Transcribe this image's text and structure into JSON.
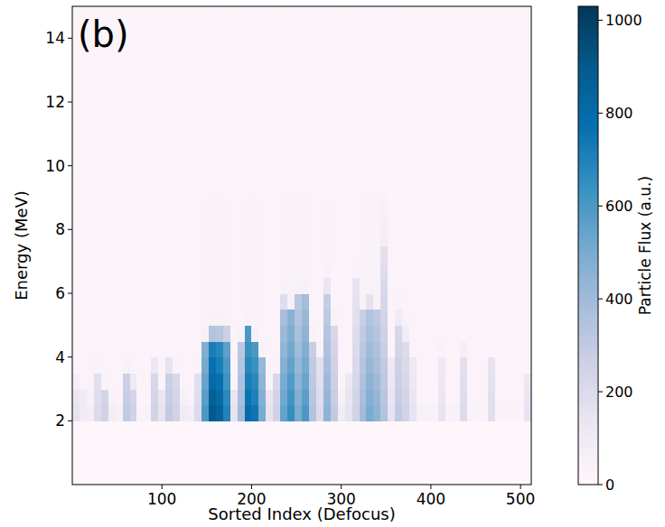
{
  "chart_data": {
    "type": "heatmap",
    "annotations": [
      "(b)"
    ],
    "x_label": "Sorted Index (Defocus)",
    "y_label": "Energy (MeV)",
    "x_bins": [
      0,
      8,
      16,
      24,
      32,
      40,
      48,
      56,
      64,
      72,
      80,
      88,
      96,
      104,
      112,
      120,
      128,
      136,
      144,
      152,
      160,
      168,
      176,
      184,
      192,
      200,
      208,
      216,
      224,
      232,
      240,
      248,
      256,
      264,
      272,
      280,
      288,
      296,
      304,
      312,
      320,
      328,
      336,
      344,
      352,
      360,
      368,
      376,
      384,
      392,
      400,
      408,
      416,
      424,
      432,
      440,
      448,
      456,
      464,
      472,
      480,
      488,
      496,
      504,
      512
    ],
    "y_bins": [
      0,
      2,
      2.5,
      3,
      3.5,
      4,
      4.5,
      5,
      5.5,
      6,
      6.5,
      7,
      7.5,
      8,
      8.5,
      9,
      15
    ],
    "values": [
      [
        10,
        150,
        140,
        70,
        30,
        30,
        30,
        30,
        30,
        30,
        30,
        30,
        30,
        30,
        30,
        25
      ],
      [
        10,
        100,
        95,
        30,
        30,
        30,
        30,
        30,
        30,
        30,
        30,
        30,
        30,
        30,
        30,
        25
      ],
      [
        10,
        80,
        50,
        30,
        30,
        30,
        30,
        30,
        30,
        30,
        30,
        30,
        30,
        30,
        30,
        25
      ],
      [
        10,
        200,
        190,
        180,
        40,
        30,
        30,
        30,
        30,
        30,
        30,
        30,
        30,
        30,
        30,
        25
      ],
      [
        10,
        250,
        240,
        40,
        30,
        30,
        30,
        30,
        30,
        30,
        30,
        30,
        30,
        30,
        30,
        25
      ],
      [
        10,
        80,
        40,
        30,
        30,
        30,
        30,
        30,
        30,
        30,
        30,
        30,
        30,
        30,
        30,
        25
      ],
      [
        10,
        60,
        30,
        30,
        30,
        30,
        30,
        30,
        30,
        30,
        30,
        30,
        30,
        30,
        30,
        25
      ],
      [
        10,
        300,
        285,
        270,
        50,
        30,
        30,
        30,
        30,
        30,
        30,
        30,
        30,
        30,
        30,
        25
      ],
      [
        10,
        250,
        240,
        110,
        30,
        30,
        30,
        30,
        30,
        30,
        30,
        30,
        30,
        30,
        30,
        25
      ],
      [
        10,
        40,
        30,
        30,
        30,
        30,
        30,
        30,
        30,
        30,
        30,
        30,
        30,
        30,
        30,
        25
      ],
      [
        10,
        50,
        30,
        30,
        30,
        30,
        30,
        30,
        30,
        30,
        30,
        30,
        30,
        30,
        30,
        25
      ],
      [
        10,
        250,
        240,
        225,
        130,
        30,
        30,
        30,
        30,
        30,
        30,
        30,
        30,
        30,
        30,
        25
      ],
      [
        10,
        150,
        140,
        35,
        30,
        30,
        30,
        30,
        30,
        30,
        30,
        30,
        30,
        30,
        30,
        25
      ],
      [
        10,
        300,
        285,
        270,
        150,
        35,
        30,
        30,
        30,
        30,
        30,
        30,
        30,
        30,
        30,
        25
      ],
      [
        10,
        250,
        240,
        225,
        40,
        30,
        30,
        30,
        30,
        30,
        30,
        30,
        30,
        30,
        30,
        25
      ],
      [
        10,
        100,
        60,
        30,
        30,
        30,
        30,
        30,
        30,
        30,
        30,
        30,
        30,
        30,
        30,
        25
      ],
      [
        10,
        80,
        40,
        30,
        30,
        30,
        30,
        30,
        30,
        30,
        30,
        30,
        30,
        30,
        30,
        25
      ],
      [
        10,
        200,
        190,
        180,
        40,
        30,
        30,
        30,
        30,
        30,
        30,
        30,
        30,
        30,
        30,
        25
      ],
      [
        10,
        600,
        570,
        540,
        510,
        480,
        60,
        40,
        40,
        40,
        40,
        40,
        40,
        40,
        40,
        30
      ],
      [
        10,
        900,
        860,
        810,
        770,
        720,
        350,
        50,
        40,
        40,
        40,
        40,
        40,
        40,
        40,
        30
      ],
      [
        10,
        850,
        810,
        770,
        720,
        680,
        330,
        50,
        40,
        40,
        40,
        40,
        40,
        40,
        40,
        30
      ],
      [
        10,
        700,
        670,
        630,
        600,
        560,
        270,
        45,
        40,
        40,
        40,
        40,
        40,
        40,
        40,
        30
      ],
      [
        10,
        150,
        140,
        35,
        30,
        30,
        30,
        30,
        30,
        30,
        30,
        30,
        30,
        30,
        30,
        25
      ],
      [
        10,
        400,
        380,
        360,
        340,
        320,
        45,
        35,
        35,
        35,
        35,
        35,
        35,
        35,
        35,
        30
      ],
      [
        10,
        800,
        760,
        720,
        680,
        640,
        600,
        50,
        40,
        40,
        40,
        40,
        40,
        40,
        40,
        30
      ],
      [
        10,
        750,
        710,
        680,
        640,
        600,
        60,
        40,
        40,
        40,
        40,
        40,
        40,
        40,
        40,
        30
      ],
      [
        10,
        500,
        475,
        450,
        425,
        50,
        35,
        35,
        35,
        35,
        35,
        35,
        35,
        35,
        35,
        30
      ],
      [
        10,
        150,
        140,
        35,
        30,
        30,
        30,
        30,
        30,
        30,
        30,
        30,
        30,
        30,
        30,
        25
      ],
      [
        10,
        250,
        240,
        225,
        40,
        30,
        30,
        30,
        30,
        30,
        30,
        30,
        30,
        30,
        30,
        25
      ],
      [
        10,
        550,
        520,
        500,
        470,
        440,
        410,
        380,
        190,
        50,
        40,
        40,
        40,
        40,
        40,
        30
      ],
      [
        10,
        650,
        620,
        590,
        550,
        520,
        490,
        460,
        60,
        40,
        40,
        40,
        40,
        40,
        40,
        30
      ],
      [
        10,
        500,
        475,
        450,
        425,
        400,
        375,
        350,
        325,
        60,
        40,
        40,
        40,
        40,
        40,
        30
      ],
      [
        10,
        600,
        570,
        540,
        510,
        480,
        450,
        420,
        390,
        60,
        40,
        40,
        40,
        40,
        40,
        30
      ],
      [
        10,
        350,
        330,
        315,
        300,
        280,
        45,
        35,
        35,
        35,
        35,
        35,
        35,
        35,
        35,
        30
      ],
      [
        10,
        200,
        190,
        180,
        170,
        40,
        30,
        30,
        30,
        30,
        30,
        30,
        30,
        30,
        30,
        25
      ],
      [
        10,
        450,
        430,
        405,
        380,
        360,
        340,
        315,
        290,
        140,
        50,
        40,
        40,
        40,
        40,
        30
      ],
      [
        10,
        300,
        285,
        270,
        255,
        240,
        225,
        40,
        35,
        35,
        35,
        35,
        35,
        35,
        35,
        30
      ],
      [
        10,
        100,
        60,
        30,
        30,
        30,
        30,
        30,
        30,
        30,
        30,
        30,
        30,
        30,
        30,
        25
      ],
      [
        10,
        150,
        140,
        130,
        35,
        30,
        30,
        30,
        30,
        30,
        30,
        30,
        30,
        30,
        30,
        25
      ],
      [
        10,
        250,
        240,
        225,
        210,
        200,
        190,
        175,
        160,
        150,
        40,
        35,
        35,
        35,
        35,
        30
      ],
      [
        10,
        400,
        380,
        360,
        340,
        320,
        300,
        280,
        50,
        40,
        40,
        40,
        40,
        40,
        40,
        30
      ],
      [
        10,
        500,
        475,
        450,
        425,
        400,
        375,
        350,
        160,
        50,
        40,
        40,
        40,
        40,
        40,
        30
      ],
      [
        10,
        450,
        430,
        405,
        380,
        360,
        340,
        315,
        50,
        40,
        40,
        40,
        40,
        40,
        40,
        30
      ],
      [
        10,
        350,
        330,
        315,
        300,
        280,
        260,
        245,
        230,
        210,
        190,
        170,
        80,
        70,
        60,
        35
      ],
      [
        10,
        150,
        140,
        130,
        120,
        35,
        30,
        30,
        30,
        30,
        30,
        30,
        30,
        30,
        30,
        25
      ],
      [
        10,
        300,
        285,
        270,
        255,
        240,
        225,
        100,
        40,
        35,
        35,
        35,
        35,
        35,
        35,
        30
      ],
      [
        10,
        250,
        240,
        225,
        210,
        200,
        90,
        40,
        35,
        35,
        35,
        35,
        35,
        35,
        35,
        30
      ],
      [
        10,
        150,
        140,
        130,
        120,
        35,
        30,
        30,
        30,
        30,
        30,
        30,
        30,
        30,
        30,
        25
      ],
      [
        10,
        60,
        30,
        30,
        30,
        30,
        30,
        30,
        30,
        30,
        30,
        30,
        30,
        30,
        30,
        25
      ],
      [
        10,
        60,
        30,
        30,
        30,
        30,
        30,
        30,
        30,
        30,
        30,
        30,
        30,
        30,
        30,
        25
      ],
      [
        10,
        50,
        30,
        30,
        30,
        30,
        30,
        30,
        30,
        30,
        30,
        30,
        30,
        30,
        30,
        25
      ],
      [
        10,
        150,
        140,
        130,
        120,
        50,
        30,
        30,
        30,
        30,
        30,
        30,
        30,
        30,
        30,
        25
      ],
      [
        10,
        50,
        30,
        30,
        30,
        30,
        30,
        30,
        30,
        30,
        30,
        30,
        30,
        30,
        30,
        25
      ],
      [
        10,
        50,
        30,
        30,
        30,
        30,
        30,
        30,
        30,
        30,
        30,
        30,
        30,
        30,
        30,
        25
      ],
      [
        10,
        200,
        190,
        180,
        170,
        70,
        30,
        30,
        30,
        30,
        30,
        30,
        30,
        30,
        30,
        25
      ],
      [
        10,
        40,
        30,
        30,
        30,
        30,
        30,
        30,
        30,
        30,
        30,
        30,
        30,
        30,
        30,
        25
      ],
      [
        10,
        40,
        30,
        30,
        30,
        30,
        30,
        30,
        30,
        30,
        30,
        30,
        30,
        30,
        30,
        25
      ],
      [
        10,
        40,
        30,
        30,
        30,
        30,
        30,
        30,
        30,
        30,
        30,
        30,
        30,
        30,
        30,
        25
      ],
      [
        10,
        180,
        170,
        160,
        150,
        30,
        30,
        30,
        30,
        30,
        30,
        30,
        30,
        30,
        30,
        25
      ],
      [
        10,
        40,
        30,
        30,
        30,
        30,
        30,
        30,
        30,
        30,
        30,
        30,
        30,
        30,
        30,
        25
      ],
      [
        10,
        40,
        30,
        30,
        30,
        30,
        30,
        30,
        30,
        30,
        30,
        30,
        30,
        30,
        30,
        25
      ],
      [
        10,
        40,
        30,
        30,
        30,
        30,
        30,
        30,
        30,
        30,
        30,
        30,
        30,
        30,
        30,
        25
      ],
      [
        10,
        30,
        30,
        30,
        30,
        30,
        30,
        30,
        30,
        30,
        30,
        30,
        30,
        30,
        30,
        25
      ],
      [
        10,
        150,
        140,
        130,
        30,
        30,
        30,
        30,
        30,
        30,
        30,
        30,
        30,
        30,
        30,
        25
      ]
    ],
    "xlim": [
      0,
      512
    ],
    "ylim": [
      0,
      15
    ],
    "xticks": [
      100,
      200,
      300,
      400,
      500
    ],
    "yticks": [
      2,
      4,
      6,
      8,
      10,
      12,
      14
    ],
    "colorbar": {
      "label": "Particle Flux (a.u.)",
      "range": [
        0,
        1030
      ],
      "ticks": [
        0,
        200,
        400,
        600,
        800,
        1000
      ]
    },
    "grid": false
  }
}
